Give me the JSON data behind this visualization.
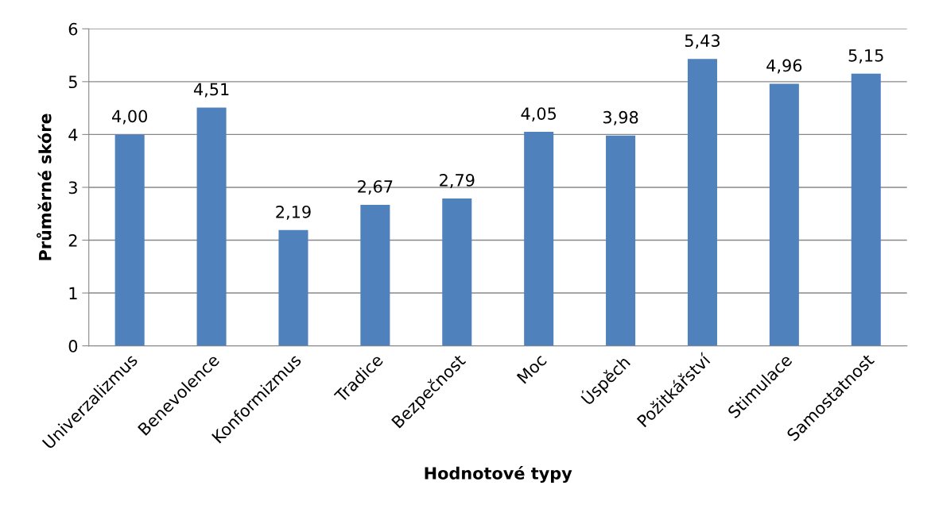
{
  "chart_data": {
    "type": "bar",
    "xlabel": "Hodnotové typy",
    "ylabel": "Průměrné skóre",
    "categories": [
      "Univerzalizmus",
      "Benevolence",
      "Konformizmus",
      "Tradice",
      "Bezpečnost",
      "Moc",
      "Úspěch",
      "Požitkářství",
      "Stimulace",
      "Samostatnost"
    ],
    "values": [
      4.0,
      4.51,
      2.19,
      2.67,
      2.79,
      4.05,
      3.98,
      5.43,
      4.96,
      5.15
    ],
    "value_labels": [
      "4,00",
      "4,51",
      "2,19",
      "2,67",
      "2,79",
      "4,05",
      "3,98",
      "5,43",
      "4,96",
      "5,15"
    ],
    "color": "#4f81bd",
    "ylim": [
      0,
      6
    ],
    "yticks": [
      0,
      1,
      2,
      3,
      4,
      5,
      6
    ],
    "grid": "y",
    "legend": false
  }
}
